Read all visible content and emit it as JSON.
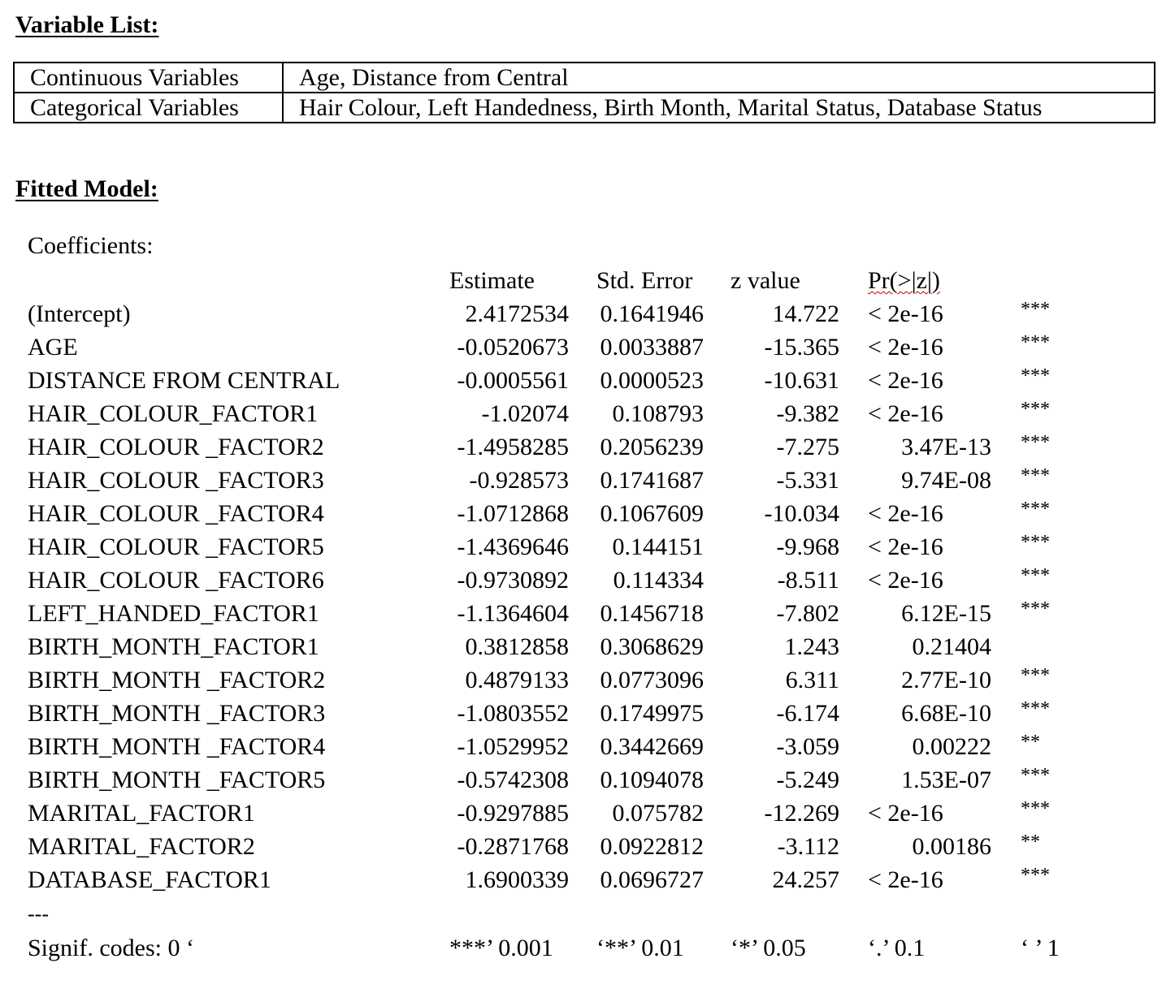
{
  "variable_list": {
    "heading": "Variable List:",
    "rows": [
      {
        "type": "Continuous Variables",
        "variables": "Age, Distance from Central"
      },
      {
        "type": "Categorical Variables",
        "variables": "Hair Colour, Left Handedness, Birth Month, Marital Status, Database Status"
      }
    ]
  },
  "fitted_model": {
    "heading": "Fitted Model:",
    "coefficients_label": "Coefficients:",
    "columns": {
      "estimate": "Estimate",
      "std_error": "Std. Error",
      "z_value": "z value",
      "p_value": "Pr(>|z|)"
    },
    "rows": [
      {
        "name": "(Intercept)",
        "estimate": "2.4172534",
        "std_error": "0.1641946",
        "z_value": "14.722",
        "p_value": "< 2e-16",
        "p_align": "left",
        "signif": "***"
      },
      {
        "name": "AGE",
        "estimate": "-0.0520673",
        "std_error": "0.0033887",
        "z_value": "-15.365",
        "p_value": "< 2e-16",
        "p_align": "left",
        "signif": "***"
      },
      {
        "name": "DISTANCE FROM CENTRAL",
        "estimate": "-0.0005561",
        "std_error": "0.0000523",
        "z_value": "-10.631",
        "p_value": "< 2e-16",
        "p_align": "left",
        "signif": "***"
      },
      {
        "name": "HAIR_COLOUR_FACTOR1",
        "estimate": "-1.02074",
        "std_error": "0.108793",
        "z_value": "-9.382",
        "p_value": "< 2e-16",
        "p_align": "left",
        "signif": "***"
      },
      {
        "name": "HAIR_COLOUR _FACTOR2",
        "estimate": "-1.4958285",
        "std_error": "0.2056239",
        "z_value": "-7.275",
        "p_value": "3.47E-13",
        "p_align": "right",
        "signif": "***"
      },
      {
        "name": "HAIR_COLOUR _FACTOR3",
        "estimate": "-0.928573",
        "std_error": "0.1741687",
        "z_value": "-5.331",
        "p_value": "9.74E-08",
        "p_align": "right",
        "signif": "***"
      },
      {
        "name": "HAIR_COLOUR _FACTOR4",
        "estimate": "-1.0712868",
        "std_error": "0.1067609",
        "z_value": "-10.034",
        "p_value": "< 2e-16",
        "p_align": "left",
        "signif": "***"
      },
      {
        "name": "HAIR_COLOUR _FACTOR5",
        "estimate": "-1.4369646",
        "std_error": "0.144151",
        "z_value": "-9.968",
        "p_value": "< 2e-16",
        "p_align": "left",
        "signif": "***"
      },
      {
        "name": "HAIR_COLOUR _FACTOR6",
        "estimate": "-0.9730892",
        "std_error": "0.114334",
        "z_value": "-8.511",
        "p_value": "< 2e-16",
        "p_align": "left",
        "signif": "***"
      },
      {
        "name": "LEFT_HANDED_FACTOR1",
        "estimate": "-1.1364604",
        "std_error": "0.1456718",
        "z_value": "-7.802",
        "p_value": "6.12E-15",
        "p_align": "right",
        "signif": "***"
      },
      {
        "name": "BIRTH_MONTH_FACTOR1",
        "estimate": "0.3812858",
        "std_error": "0.3068629",
        "z_value": "1.243",
        "p_value": "0.21404",
        "p_align": "right",
        "signif": ""
      },
      {
        "name": "BIRTH_MONTH _FACTOR2",
        "estimate": "0.4879133",
        "std_error": "0.0773096",
        "z_value": "6.311",
        "p_value": "2.77E-10",
        "p_align": "right",
        "signif": "***"
      },
      {
        "name": "BIRTH_MONTH _FACTOR3",
        "estimate": "-1.0803552",
        "std_error": "0.1749975",
        "z_value": "-6.174",
        "p_value": "6.68E-10",
        "p_align": "right",
        "signif": "***"
      },
      {
        "name": "BIRTH_MONTH _FACTOR4",
        "estimate": "-1.0529952",
        "std_error": "0.3442669",
        "z_value": "-3.059",
        "p_value": "0.00222",
        "p_align": "right",
        "signif": "**"
      },
      {
        "name": "BIRTH_MONTH _FACTOR5",
        "estimate": "-0.5742308",
        "std_error": "0.1094078",
        "z_value": "-5.249",
        "p_value": "1.53E-07",
        "p_align": "right",
        "signif": "***"
      },
      {
        "name": "MARITAL_FACTOR1",
        "estimate": "-0.9297885",
        "std_error": "0.075782",
        "z_value": "-12.269",
        "p_value": "< 2e-16",
        "p_align": "left",
        "signif": "***"
      },
      {
        "name": "MARITAL_FACTOR2",
        "estimate": "-0.2871768",
        "std_error": "0.0922812",
        "z_value": "-3.112",
        "p_value": "0.00186",
        "p_align": "right",
        "signif": "**"
      },
      {
        "name": "DATABASE_FACTOR1",
        "estimate": "1.6900339",
        "std_error": "0.0696727",
        "z_value": "24.257",
        "p_value": "< 2e-16",
        "p_align": "left",
        "signif": "***"
      }
    ],
    "separator": "---",
    "signif_codes": {
      "label": "Signif. codes:  0 ‘",
      "a": "***’ 0.001",
      "b": "‘**’ 0.01",
      "c": "‘*’ 0.05",
      "d": "‘.’ 0.1",
      "e": "‘ ’ 1"
    }
  }
}
